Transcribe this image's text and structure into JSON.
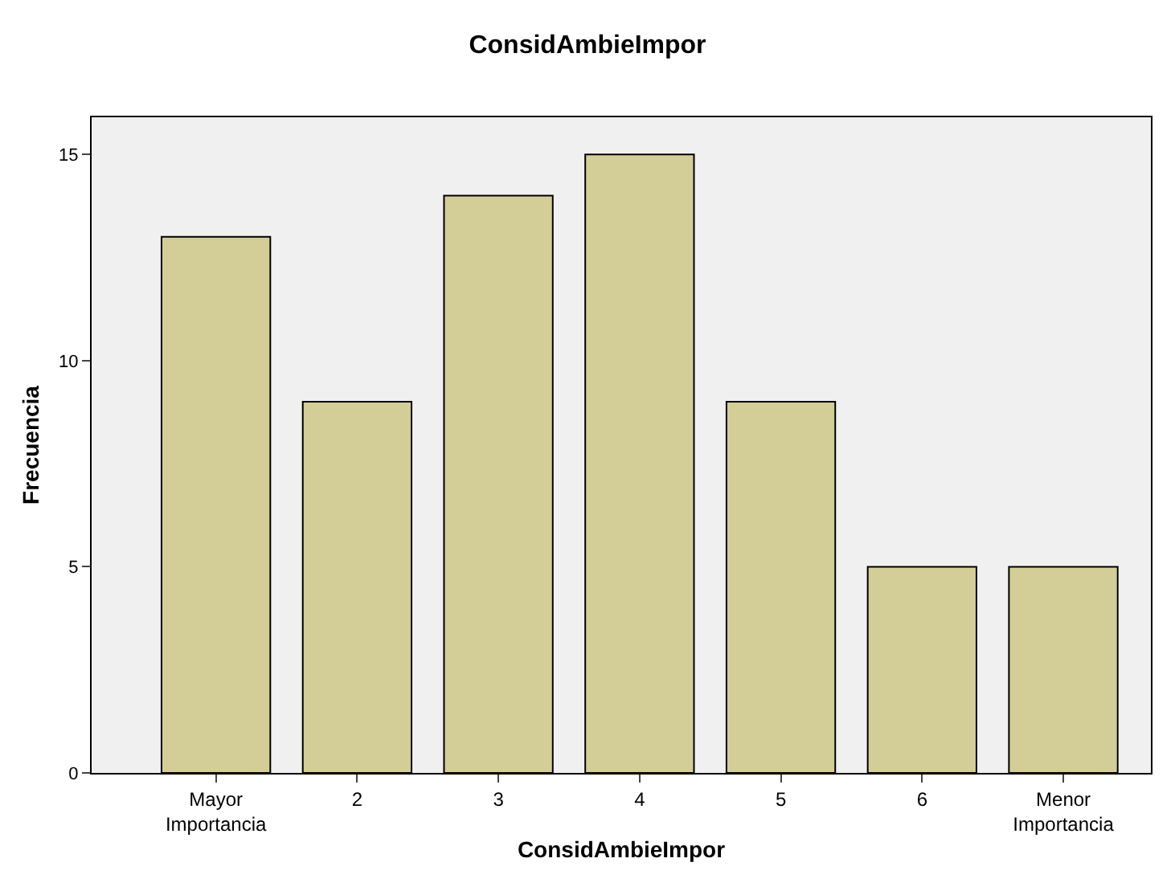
{
  "chart_data": {
    "type": "bar",
    "title": "ConsidAmbieImpor",
    "xlabel": "ConsidAmbieImpor",
    "ylabel": "Frecuencia",
    "categories": [
      "Mayor Importancia",
      "2",
      "3",
      "4",
      "5",
      "6",
      "Menor Importancia"
    ],
    "values": [
      13,
      9,
      14,
      15,
      9,
      5,
      5
    ],
    "color": "#d3ce97",
    "ylim": [
      0,
      15.9
    ],
    "yticks": [
      0,
      5,
      10,
      15
    ],
    "grid": false,
    "legend": false
  }
}
